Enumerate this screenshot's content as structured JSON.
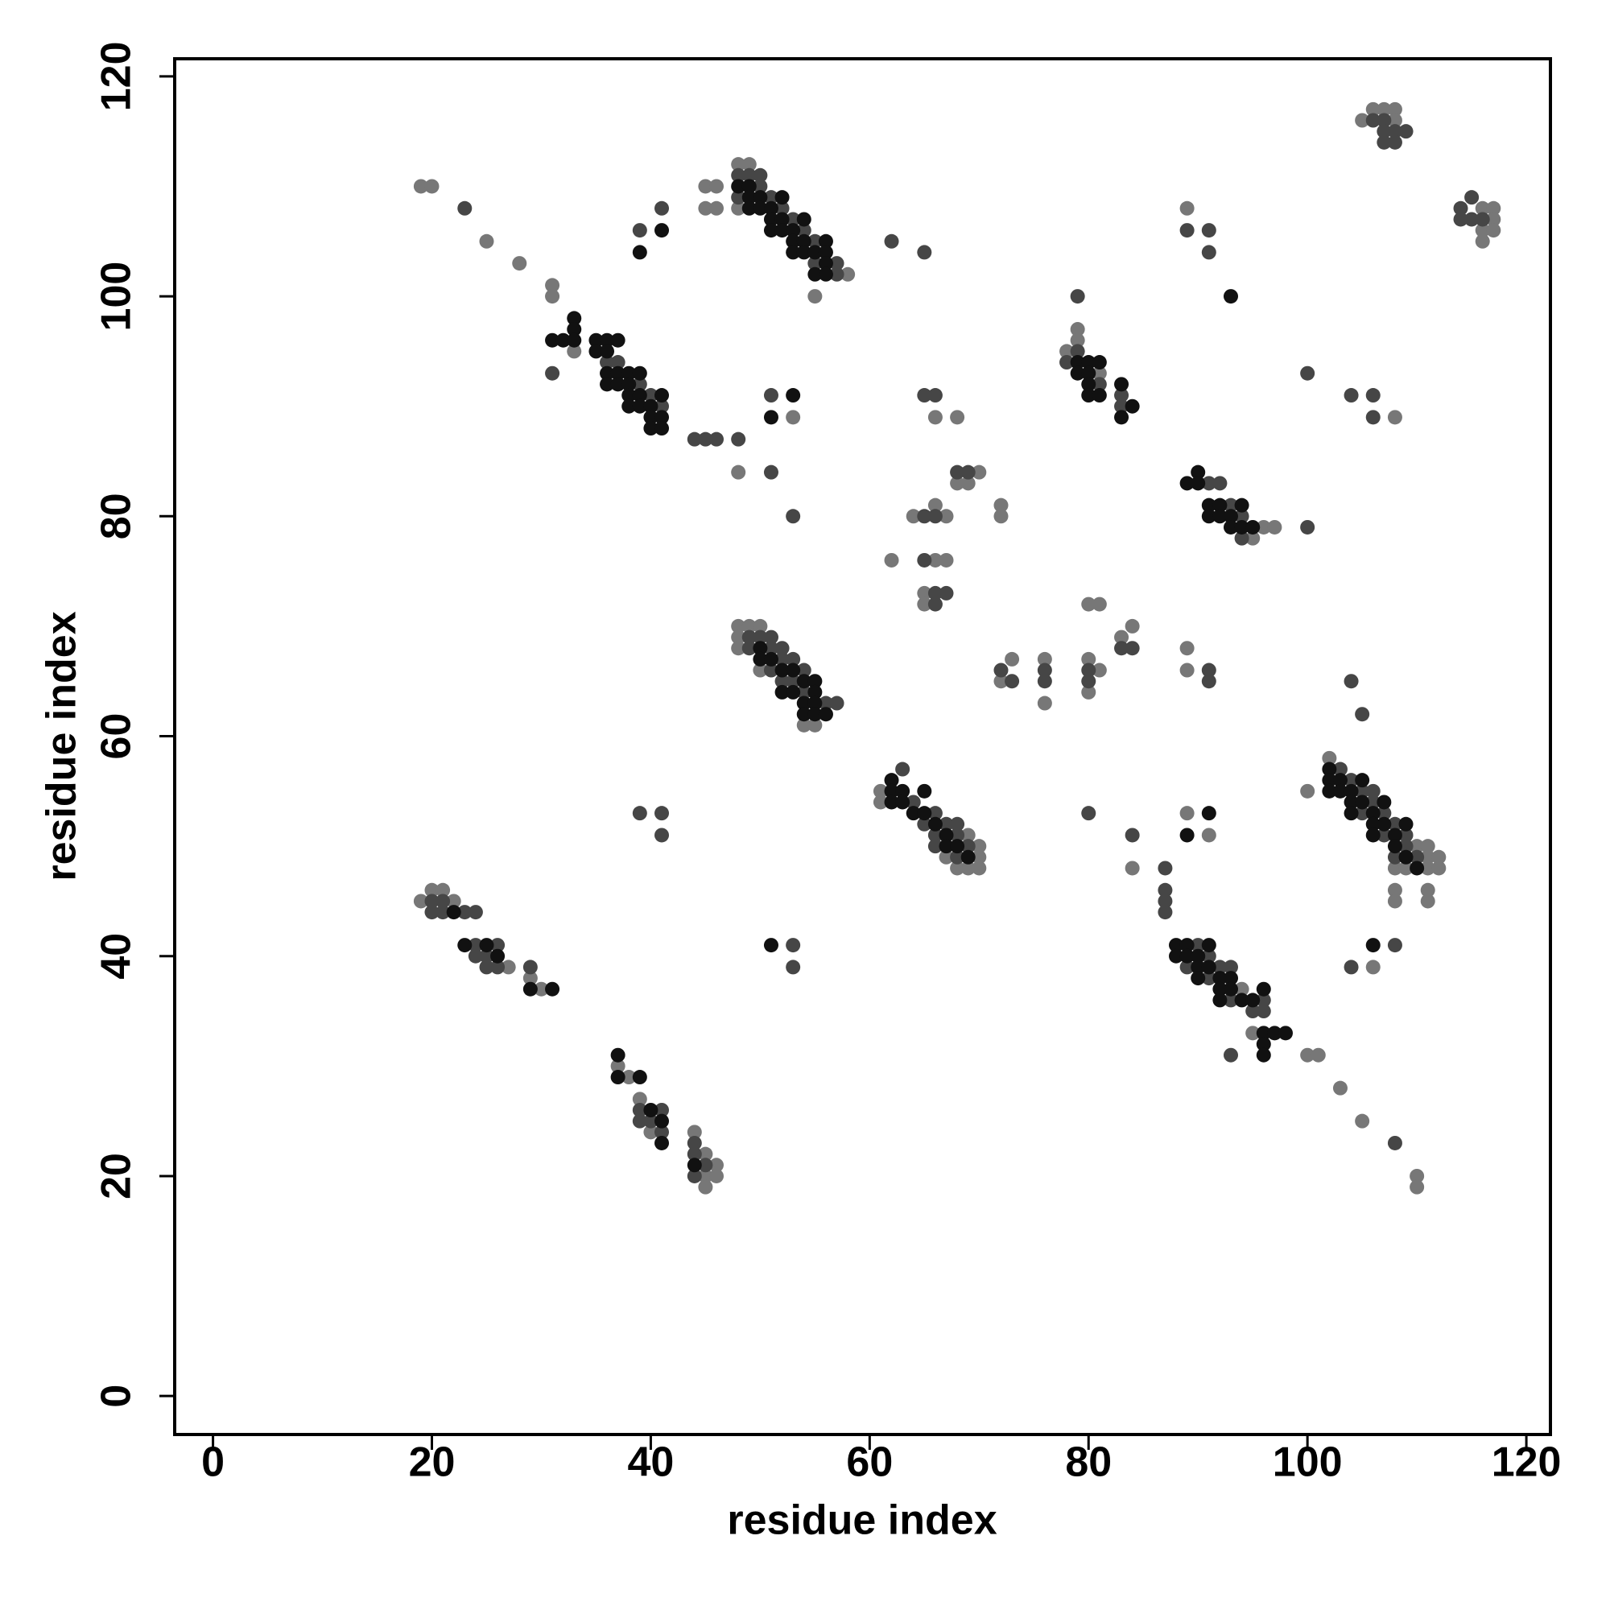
{
  "chart_data": {
    "type": "scatter",
    "x_label": "residue index",
    "y_label": "residue index",
    "xlim": [
      -3.5,
      122.2
    ],
    "ylim": [
      -3.5,
      121.6
    ],
    "xticks": [
      0,
      20,
      40,
      60,
      80,
      100,
      120
    ],
    "yticks": [
      0,
      20,
      40,
      60,
      80,
      100,
      120
    ],
    "series": [
      {
        "color": "#777777",
        "x": [
          19,
          20,
          25,
          28,
          31,
          31,
          33,
          48,
          53,
          45,
          46,
          45,
          46,
          48,
          49,
          48,
          58,
          55,
          48,
          49,
          50,
          48,
          48,
          50,
          54,
          55,
          62,
          64,
          66,
          67,
          66,
          67,
          65,
          65,
          66,
          68,
          70,
          68,
          69,
          72,
          72,
          73,
          72,
          76,
          76,
          80,
          80,
          81,
          80,
          81,
          83,
          84,
          79,
          79,
          78,
          81,
          61,
          61,
          70,
          67,
          70,
          68,
          69,
          70,
          69,
          19,
          20,
          21,
          22,
          27,
          29,
          30,
          37,
          38,
          39,
          40,
          44,
          45,
          46,
          45,
          46,
          45,
          94,
          95,
          100,
          101,
          103,
          105,
          110,
          110,
          89,
          91,
          84,
          102,
          110,
          111,
          111,
          112,
          108,
          109,
          111,
          112,
          108,
          108,
          111,
          111,
          100,
          106,
          95,
          96,
          97,
          89,
          89,
          89,
          108,
          105,
          106,
          107,
          108,
          108,
          116,
          117,
          117,
          116,
          117,
          116
        ],
        "values": [
          110,
          110,
          105,
          103,
          101,
          100,
          95,
          84,
          89,
          110,
          110,
          108,
          108,
          112,
          112,
          108,
          102,
          100,
          70,
          70,
          70,
          69,
          68,
          66,
          61,
          61,
          76,
          80,
          81,
          80,
          76,
          76,
          73,
          72,
          89,
          89,
          84,
          83,
          83,
          81,
          80,
          67,
          65,
          67,
          63,
          67,
          64,
          66,
          72,
          72,
          69,
          70,
          97,
          96,
          95,
          93,
          55,
          54,
          50,
          49,
          49,
          48,
          48,
          48,
          51,
          45,
          46,
          46,
          45,
          39,
          38,
          37,
          30,
          29,
          27,
          24,
          24,
          22,
          21,
          20,
          20,
          19,
          37,
          33,
          31,
          31,
          28,
          25,
          20,
          19,
          53,
          51,
          48,
          58,
          50,
          50,
          49,
          49,
          48,
          48,
          48,
          48,
          46,
          45,
          46,
          45,
          55,
          39,
          78,
          79,
          79,
          68,
          66,
          108,
          89,
          116,
          117,
          117,
          117,
          116,
          108,
          108,
          107,
          106,
          106,
          105
        ]
      },
      {
        "color": "#464646",
        "x": [
          23,
          31,
          36,
          37,
          39,
          40,
          41,
          39,
          41,
          44,
          45,
          46,
          48,
          51,
          51,
          53,
          48,
          49,
          50,
          50,
          48,
          51,
          52,
          53,
          54,
          55,
          55,
          57,
          57,
          62,
          65,
          49,
          50,
          51,
          49,
          51,
          52,
          52,
          53,
          51,
          54,
          52,
          53,
          54,
          56,
          57,
          65,
          66,
          65,
          66,
          67,
          66,
          65,
          66,
          68,
          69,
          72,
          73,
          76,
          76,
          80,
          80,
          83,
          84,
          80,
          79,
          79,
          78,
          81,
          83,
          83,
          63,
          64,
          66,
          65,
          67,
          66,
          68,
          66,
          69,
          68,
          68,
          39,
          41,
          41,
          53,
          53,
          20,
          21,
          20,
          21,
          23,
          24,
          24,
          26,
          24,
          25,
          25,
          26,
          29,
          39,
          41,
          39,
          40,
          41,
          44,
          44,
          45,
          44,
          87,
          87,
          87,
          87,
          90,
          91,
          89,
          92,
          93,
          91,
          93,
          95,
          96,
          96,
          93,
          108,
          84,
          103,
          104,
          105,
          106,
          106,
          105,
          107,
          108,
          107,
          109,
          109,
          108,
          110,
          104,
          105,
          104,
          108,
          91,
          92,
          93,
          94,
          94,
          100,
          91,
          91,
          89,
          91,
          91,
          100,
          104,
          106,
          106,
          106,
          107,
          107,
          108,
          109,
          107,
          108,
          114,
          115,
          114,
          115,
          116
        ],
        "values": [
          108,
          93,
          94,
          94,
          92,
          91,
          90,
          106,
          108,
          87,
          87,
          87,
          87,
          84,
          91,
          80,
          111,
          111,
          111,
          110,
          109,
          109,
          108,
          107,
          106,
          105,
          103,
          103,
          102,
          105,
          104,
          69,
          69,
          69,
          68,
          68,
          68,
          67,
          67,
          66,
          66,
          65,
          65,
          64,
          63,
          63,
          80,
          80,
          76,
          73,
          73,
          72,
          91,
          91,
          84,
          84,
          66,
          65,
          66,
          65,
          66,
          65,
          68,
          68,
          53,
          100,
          95,
          94,
          92,
          91,
          90,
          57,
          54,
          53,
          52,
          52,
          51,
          51,
          50,
          50,
          49,
          52,
          53,
          53,
          51,
          41,
          39,
          45,
          45,
          44,
          44,
          44,
          44,
          41,
          41,
          40,
          40,
          39,
          39,
          39,
          26,
          26,
          25,
          25,
          24,
          23,
          22,
          21,
          20,
          48,
          46,
          45,
          44,
          41,
          40,
          39,
          39,
          39,
          38,
          36,
          35,
          35,
          36,
          31,
          23,
          51,
          57,
          56,
          55,
          55,
          54,
          53,
          53,
          52,
          51,
          51,
          50,
          49,
          49,
          65,
          62,
          39,
          41,
          83,
          83,
          81,
          80,
          78,
          79,
          66,
          65,
          106,
          106,
          104,
          93,
          91,
          91,
          89,
          116,
          116,
          115,
          115,
          115,
          114,
          114,
          108,
          109,
          107,
          107,
          107
        ]
      },
      {
        "color": "#111111",
        "x": [
          31,
          32,
          33,
          33,
          33,
          35,
          35,
          36,
          36,
          36,
          36,
          37,
          37,
          37,
          38,
          38,
          38,
          38,
          39,
          39,
          39,
          40,
          40,
          40,
          41,
          41,
          41,
          39,
          41,
          51,
          53,
          48,
          49,
          49,
          50,
          52,
          49,
          50,
          51,
          51,
          52,
          54,
          51,
          52,
          53,
          53,
          54,
          56,
          53,
          54,
          55,
          56,
          56,
          55,
          56,
          50,
          50,
          51,
          52,
          53,
          54,
          55,
          52,
          53,
          55,
          54,
          55,
          54,
          55,
          56,
          79,
          80,
          81,
          79,
          80,
          80,
          80,
          81,
          83,
          84,
          83,
          62,
          62,
          63,
          62,
          63,
          65,
          64,
          65,
          66,
          67,
          67,
          68,
          69,
          51,
          22,
          23,
          25,
          26,
          29,
          31,
          37,
          37,
          39,
          40,
          41,
          41,
          44,
          88,
          89,
          91,
          88,
          89,
          90,
          90,
          91,
          90,
          92,
          93,
          92,
          93,
          92,
          94,
          95,
          96,
          96,
          97,
          98,
          96,
          96,
          91,
          89,
          102,
          102,
          103,
          105,
          102,
          103,
          104,
          104,
          105,
          107,
          104,
          106,
          106,
          107,
          109,
          106,
          108,
          108,
          109,
          110,
          106,
          89,
          90,
          90,
          91,
          92,
          94,
          91,
          92,
          93,
          93,
          94,
          95,
          93
        ],
        "values": [
          96,
          96,
          98,
          97,
          96,
          96,
          95,
          96,
          95,
          93,
          92,
          96,
          93,
          92,
          93,
          92,
          91,
          90,
          93,
          91,
          90,
          90,
          89,
          88,
          91,
          89,
          88,
          104,
          106,
          89,
          91,
          110,
          110,
          109,
          109,
          109,
          108,
          108,
          108,
          107,
          107,
          107,
          106,
          106,
          106,
          105,
          105,
          105,
          104,
          104,
          104,
          104,
          103,
          102,
          102,
          68,
          67,
          67,
          66,
          66,
          65,
          65,
          64,
          64,
          64,
          63,
          63,
          62,
          62,
          62,
          94,
          94,
          94,
          93,
          93,
          92,
          91,
          91,
          92,
          90,
          89,
          56,
          55,
          55,
          54,
          54,
          55,
          53,
          53,
          52,
          51,
          50,
          50,
          49,
          41,
          44,
          41,
          41,
          40,
          37,
          37,
          31,
          29,
          29,
          26,
          25,
          23,
          21,
          41,
          41,
          41,
          40,
          40,
          40,
          39,
          39,
          38,
          38,
          38,
          37,
          37,
          36,
          36,
          36,
          37,
          33,
          33,
          33,
          32,
          31,
          53,
          51,
          57,
          56,
          56,
          56,
          55,
          55,
          55,
          54,
          54,
          54,
          53,
          53,
          52,
          52,
          52,
          51,
          51,
          50,
          49,
          48,
          41,
          83,
          84,
          83,
          81,
          81,
          81,
          80,
          80,
          80,
          79,
          79,
          79,
          100
        ]
      }
    ]
  }
}
